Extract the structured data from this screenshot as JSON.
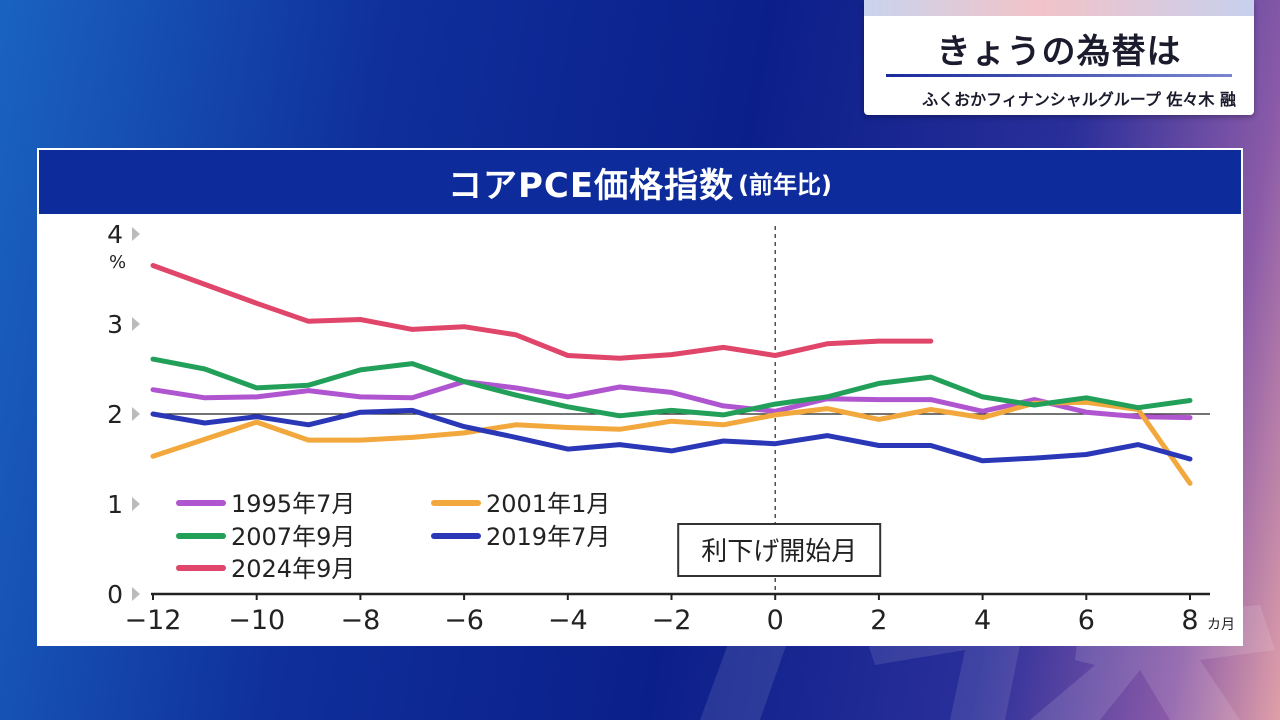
{
  "topic": {
    "title": "きょうの為替は",
    "speaker": "ふくおかフィナンシャルグループ 佐々木 融"
  },
  "chart_data": {
    "type": "line",
    "title": "コアPCE価格指数",
    "subtitle": "(前年比)",
    "ylabel": "%",
    "xlabel": "",
    "x_unit": "カ月",
    "ylim": [
      0,
      4
    ],
    "xlim": [
      -12,
      8
    ],
    "x_ticks": [
      "−12",
      "−10",
      "−8",
      "−6",
      "−4",
      "−2",
      "0",
      "2",
      "4",
      "6",
      "8"
    ],
    "x_tick_values": [
      -12,
      -10,
      -8,
      -6,
      -4,
      -2,
      0,
      2,
      4,
      6,
      8
    ],
    "y_ticks": [
      "0",
      "1",
      "2",
      "3",
      "4"
    ],
    "y_tick_values": [
      0,
      1,
      2,
      3,
      4
    ],
    "reference_line_y": 2,
    "vertical_marker_x": 0,
    "annotation": "利下げ開始月",
    "legend": {
      "placement": "bottom-left"
    },
    "x": [
      -12,
      -11,
      -10,
      -9,
      -8,
      -7,
      -6,
      -5,
      -4,
      -3,
      -2,
      -1,
      0,
      1,
      2,
      3,
      4,
      5,
      6,
      7,
      8
    ],
    "series": [
      {
        "name": "1995年7月",
        "color": "#b055d0",
        "values": [
          2.27,
          2.18,
          2.19,
          2.26,
          2.19,
          2.18,
          2.36,
          2.29,
          2.19,
          2.3,
          2.24,
          2.09,
          2.03,
          2.17,
          2.16,
          2.16,
          2.03,
          2.16,
          2.02,
          1.97,
          1.96
        ]
      },
      {
        "name": "2001年1月",
        "color": "#f2a83c",
        "values": [
          1.53,
          1.72,
          1.91,
          1.71,
          1.71,
          1.74,
          1.79,
          1.88,
          1.85,
          1.83,
          1.92,
          1.88,
          1.99,
          2.06,
          1.94,
          2.05,
          1.96,
          2.12,
          2.13,
          2.05,
          1.23
        ]
      },
      {
        "name": "2007年9月",
        "color": "#22a05a",
        "values": [
          2.61,
          2.5,
          2.29,
          2.32,
          2.49,
          2.56,
          2.36,
          2.21,
          2.08,
          1.98,
          2.04,
          1.99,
          2.11,
          2.19,
          2.34,
          2.41,
          2.19,
          2.1,
          2.18,
          2.07,
          2.15
        ]
      },
      {
        "name": "2019年7月",
        "color": "#2a38b8",
        "values": [
          2.0,
          1.9,
          1.97,
          1.88,
          2.02,
          2.04,
          1.86,
          1.74,
          1.61,
          1.66,
          1.59,
          1.7,
          1.67,
          1.76,
          1.65,
          1.65,
          1.48,
          1.51,
          1.55,
          1.66,
          1.5
        ]
      },
      {
        "name": "2024年9月",
        "color": "#e0456a",
        "values": [
          3.65,
          3.44,
          3.23,
          3.03,
          3.05,
          2.94,
          2.97,
          2.88,
          2.65,
          2.62,
          2.66,
          2.74,
          2.65,
          2.78,
          2.81,
          2.81,
          null,
          null,
          null,
          null,
          null
        ]
      }
    ]
  },
  "colors": {
    "header_bg": "#0d2b9a",
    "axis": "#222222",
    "tick_marker": "#bbbbbb"
  }
}
